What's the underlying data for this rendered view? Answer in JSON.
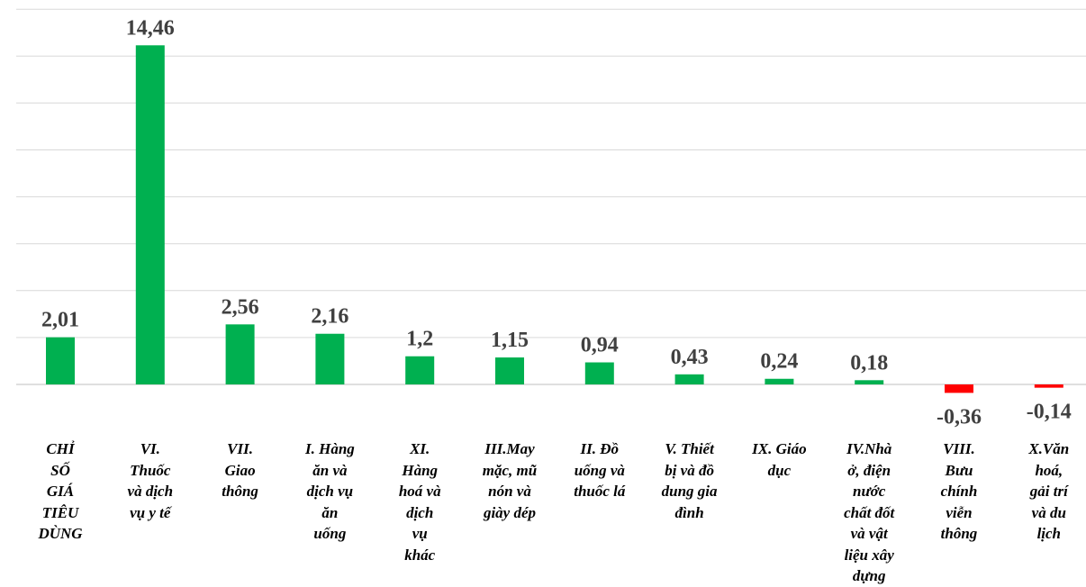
{
  "chart_data": {
    "type": "bar",
    "title": "",
    "xlabel": "",
    "ylabel": "",
    "ylim": [
      -1,
      15
    ],
    "grid": true,
    "legend": "none",
    "categories": [
      [
        "CHỈ",
        "SỐ",
        "GIÁ",
        "TIÊU",
        "DÙNG"
      ],
      [
        "VI.",
        "Thuốc",
        "và dịch",
        "vụ y tế"
      ],
      [
        "VII.",
        "Giao",
        "thông"
      ],
      [
        "I. Hàng",
        "ăn và",
        "dịch vụ",
        "ăn",
        "uống"
      ],
      [
        "XI.",
        "Hàng",
        "hoá và",
        "dịch",
        "vụ",
        "khác"
      ],
      [
        "III.May",
        "mặc, mũ",
        "nón và",
        "giày dép"
      ],
      [
        "II. Đồ",
        "uống và",
        "thuốc lá"
      ],
      [
        "V. Thiết",
        "bị và đồ",
        "dung gia",
        "đình"
      ],
      [
        "IX. Giáo",
        "dục"
      ],
      [
        "IV.Nhà",
        "ở, điện",
        "nước",
        "chất đốt",
        "và vật",
        "liệu xây",
        "dựng"
      ],
      [
        "VIII.",
        "Bưu",
        "chính",
        "viễn",
        "thông"
      ],
      [
        "X.Văn",
        "hoá,",
        "gải trí",
        "và du",
        "lịch"
      ]
    ],
    "values": [
      2.01,
      14.46,
      2.56,
      2.16,
      1.2,
      1.15,
      0.94,
      0.43,
      0.24,
      0.18,
      -0.36,
      -0.14
    ],
    "value_labels": [
      "2,01",
      "14,46",
      "2,56",
      "2,16",
      "1,2",
      "1,15",
      "0,94",
      "0,43",
      "0,24",
      "0,18",
      "-0,36",
      "-0,14"
    ],
    "colors": {
      "positive": "#00b050",
      "negative": "#ff0000",
      "grid": "#d9d9d9",
      "axis": "#bfbfbf"
    }
  }
}
